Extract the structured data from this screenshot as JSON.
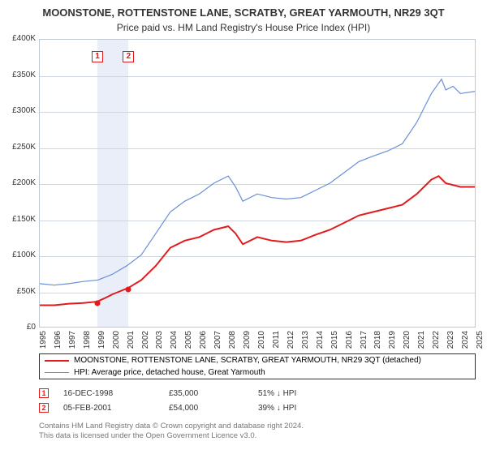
{
  "title": "MOONSTONE, ROTTENSTONE LANE, SCRATBY, GREAT YARMOUTH, NR29 3QT",
  "subtitle": "Price paid vs. HM Land Registry's House Price Index (HPI)",
  "chart": {
    "type": "line",
    "ylim": [
      0,
      400
    ],
    "ytick_step": 50,
    "xlim": [
      1995,
      2025
    ],
    "xtick_step": 1,
    "background_color": "#ffffff",
    "grid_color": "#cfd6df",
    "border_color": "#bfc7d1",
    "shade_band": {
      "start": 1998.96,
      "end": 2001.1,
      "color": "#e9eef8"
    },
    "series": [
      {
        "name": "red",
        "color": "#e31a1c",
        "width": 2,
        "label": "MOONSTONE, ROTTENSTONE LANE, SCRATBY, GREAT YARMOUTH, NR29 3QT (detached)",
        "data": [
          [
            1995,
            30
          ],
          [
            1996,
            30
          ],
          [
            1997,
            32
          ],
          [
            1998,
            33
          ],
          [
            1998.96,
            35
          ],
          [
            1999.5,
            40
          ],
          [
            2000,
            45
          ],
          [
            2001.1,
            54
          ],
          [
            2002,
            65
          ],
          [
            2003,
            85
          ],
          [
            2004,
            110
          ],
          [
            2005,
            120
          ],
          [
            2006,
            125
          ],
          [
            2007,
            135
          ],
          [
            2008,
            140
          ],
          [
            2008.5,
            130
          ],
          [
            2009,
            115
          ],
          [
            2010,
            125
          ],
          [
            2011,
            120
          ],
          [
            2012,
            118
          ],
          [
            2013,
            120
          ],
          [
            2014,
            128
          ],
          [
            2015,
            135
          ],
          [
            2016,
            145
          ],
          [
            2017,
            155
          ],
          [
            2018,
            160
          ],
          [
            2019,
            165
          ],
          [
            2020,
            170
          ],
          [
            2021,
            185
          ],
          [
            2022,
            205
          ],
          [
            2022.5,
            210
          ],
          [
            2023,
            200
          ],
          [
            2024,
            195
          ],
          [
            2025,
            195
          ]
        ]
      },
      {
        "name": "blue",
        "color": "#6a8fd4",
        "width": 1.2,
        "label": "HPI: Average price, detached house, Great Yarmouth",
        "data": [
          [
            1995,
            60
          ],
          [
            1996,
            58
          ],
          [
            1997,
            60
          ],
          [
            1998,
            63
          ],
          [
            1999,
            65
          ],
          [
            2000,
            73
          ],
          [
            2001,
            85
          ],
          [
            2002,
            100
          ],
          [
            2003,
            130
          ],
          [
            2004,
            160
          ],
          [
            2005,
            175
          ],
          [
            2006,
            185
          ],
          [
            2007,
            200
          ],
          [
            2008,
            210
          ],
          [
            2008.5,
            195
          ],
          [
            2009,
            175
          ],
          [
            2010,
            185
          ],
          [
            2011,
            180
          ],
          [
            2012,
            178
          ],
          [
            2013,
            180
          ],
          [
            2014,
            190
          ],
          [
            2015,
            200
          ],
          [
            2016,
            215
          ],
          [
            2017,
            230
          ],
          [
            2018,
            238
          ],
          [
            2019,
            245
          ],
          [
            2020,
            255
          ],
          [
            2021,
            285
          ],
          [
            2022,
            325
          ],
          [
            2022.7,
            345
          ],
          [
            2023,
            330
          ],
          [
            2023.5,
            335
          ],
          [
            2024,
            325
          ],
          [
            2025,
            328
          ]
        ]
      }
    ],
    "markers": [
      {
        "n": "1",
        "year": 1998.96,
        "price_k": 35,
        "date": "16-DEC-1998",
        "price": "£35,000",
        "diff": "51% ↓ HPI"
      },
      {
        "n": "2",
        "year": 2001.1,
        "price_k": 54,
        "date": "05-FEB-2001",
        "price": "£54,000",
        "diff": "39% ↓ HPI"
      }
    ],
    "ytick_prefix": "£",
    "ytick_suffix": "K",
    "ytick_zero": "£0"
  },
  "legend": {
    "rows": [
      {
        "color": "#e31a1c",
        "width": 2,
        "label": "MOONSTONE, ROTTENSTONE LANE, SCRATBY, GREAT YARMOUTH, NR29 3QT (detached)"
      },
      {
        "color": "#6a8fd4",
        "width": 1.2,
        "label": "HPI: Average price, detached house, Great Yarmouth"
      }
    ]
  },
  "footer_l1": "Contains HM Land Registry data © Crown copyright and database right 2024.",
  "footer_l2": "This data is licensed under the Open Government Licence v3.0."
}
